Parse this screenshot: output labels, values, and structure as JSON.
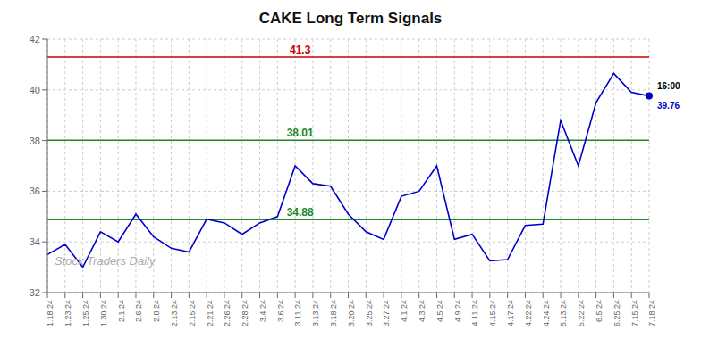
{
  "chart_data": {
    "type": "line",
    "title": "CAKE Long Term Signals",
    "categories": [
      "1.18.24",
      "1.23.24",
      "1.25.24",
      "1.30.24",
      "2.1.24",
      "2.6.24",
      "2.8.24",
      "2.13.24",
      "2.15.24",
      "2.21.24",
      "2.26.24",
      "2.28.24",
      "3.4.24",
      "3.6.24",
      "3.11.24",
      "3.13.24",
      "3.18.24",
      "3.20.24",
      "3.25.24",
      "3.27.24",
      "4.1.24",
      "4.3.24",
      "4.5.24",
      "4.9.24",
      "4.11.24",
      "4.15.24",
      "4.17.24",
      "4.22.24",
      "4.24.24",
      "5.13.24",
      "5.22.24",
      "6.5.24",
      "6.25.24",
      "7.15.24",
      "7.18.24"
    ],
    "values": [
      33.5,
      33.9,
      33.0,
      34.4,
      34.0,
      35.1,
      34.2,
      33.75,
      33.6,
      34.9,
      34.75,
      34.3,
      34.75,
      35.0,
      37.0,
      36.3,
      36.2,
      35.1,
      34.4,
      34.1,
      35.8,
      36.0,
      37.0,
      34.1,
      34.3,
      33.25,
      33.3,
      34.65,
      34.7,
      38.8,
      37.0,
      39.5,
      40.65,
      39.9,
      39.76
    ],
    "color": "#0000cc",
    "ylim": [
      32,
      42
    ],
    "yticks": [
      32,
      34,
      36,
      38,
      40,
      42
    ],
    "grid": true,
    "reference_lines": [
      {
        "value": 41.3,
        "label": "41.3",
        "color": "#cc0000"
      },
      {
        "value": 38.01,
        "label": "38.01",
        "color": "#228822"
      },
      {
        "value": 34.88,
        "label": "34.88",
        "color": "#228822"
      }
    ],
    "annotations": [
      {
        "text": "16:00",
        "color": "#000000"
      },
      {
        "text": "39.76",
        "color": "#0000cc"
      }
    ],
    "watermark": {
      "text": "Stock Traders Daily",
      "color": "#aaaaaa"
    }
  }
}
